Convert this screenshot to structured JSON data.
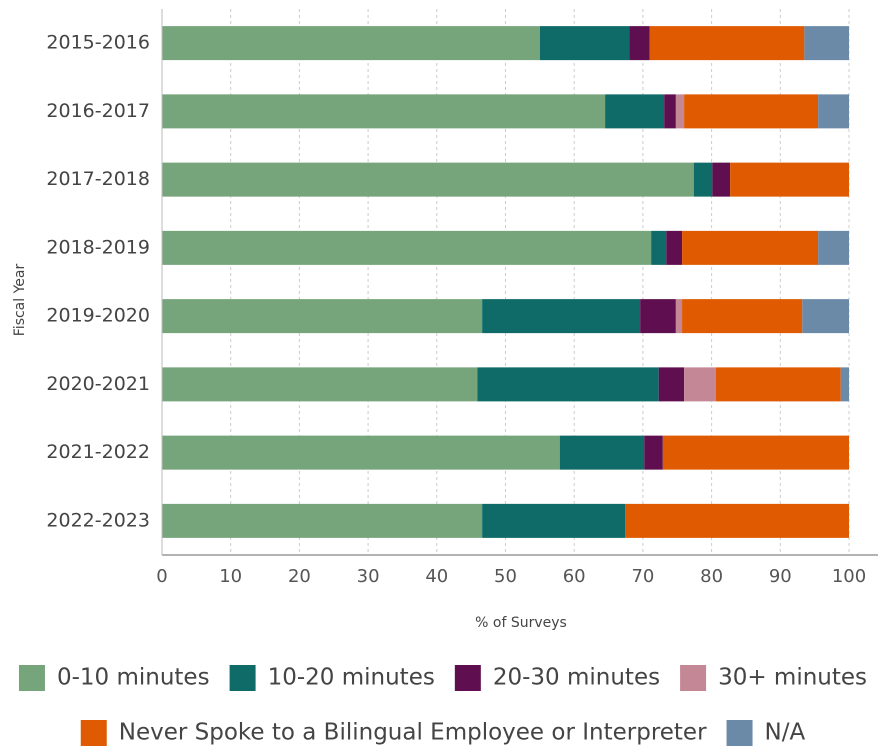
{
  "chart_data": {
    "type": "stacked_barh",
    "x_label": "% of Surveys",
    "y_label": "Fiscal Year",
    "categories": [
      "2015-2016",
      "2016-2017",
      "2017-2018",
      "2018-2019",
      "2019-2020",
      "2020-2021",
      "2021-2022",
      "2022-2023"
    ],
    "series": [
      {
        "name": "0-10 minutes",
        "color": "#76a57c",
        "values": [
          55,
          64.5,
          77.4,
          71.2,
          46.6,
          45.9,
          57.9,
          46.6
        ]
      },
      {
        "name": "10-20 minutes",
        "color": "#0e6b68",
        "values": [
          13,
          8.6,
          2.7,
          2.2,
          23,
          26.4,
          12.3,
          20.8
        ]
      },
      {
        "name": "20-30 minutes",
        "color": "#5f0f4f",
        "values": [
          3,
          1.7,
          2.6,
          2.3,
          5.2,
          3.7,
          2.7,
          0
        ]
      },
      {
        "name": "30+ minutes",
        "color": "#c48796",
        "values": [
          0,
          1.2,
          0,
          0,
          0.9,
          4.6,
          0,
          0
        ]
      },
      {
        "name": "Never Spoke to a Bilingual Employee or Interpreter",
        "color": "#df5a00",
        "values": [
          22.5,
          19.5,
          17.3,
          19.8,
          17.5,
          18.2,
          27.1,
          32.6
        ]
      },
      {
        "name": "N/A",
        "color": "#6b8aa8",
        "values": [
          6.5,
          4.5,
          0,
          4.5,
          6.8,
          1.2,
          0,
          0
        ]
      }
    ],
    "xlim": [
      0,
      100
    ],
    "xticks": [
      0,
      10,
      20,
      30,
      40,
      50,
      60,
      70,
      80,
      90,
      100
    ],
    "grid": true
  }
}
